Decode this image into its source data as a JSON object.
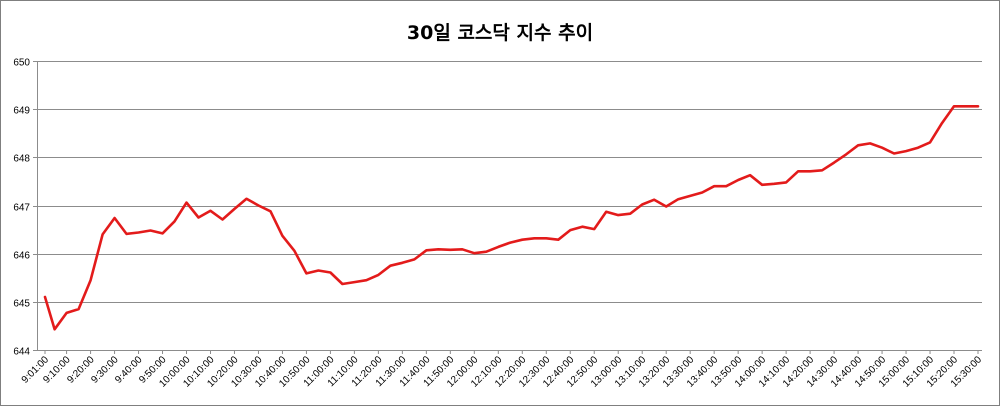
{
  "chart_data": {
    "type": "line",
    "title": "30일 코스닥 지수 추이",
    "xlabel": "",
    "ylabel": "",
    "ylim": [
      644,
      650
    ],
    "yticks": [
      "644",
      "645",
      "646",
      "647",
      "648",
      "649",
      "650"
    ],
    "x_tick_labels": [
      "9:01:00",
      "9:10:00",
      "9:20:00",
      "9:30:00",
      "9:40:00",
      "9:50:00",
      "10:00:00",
      "10:10:00",
      "10:20:00",
      "10:30:00",
      "10:40:00",
      "10:50:00",
      "11:00:00",
      "11:10:00",
      "11:20:00",
      "11:30:00",
      "11:40:00",
      "11:50:00",
      "12:00:00",
      "12:10:00",
      "12:20:00",
      "12:30:00",
      "12:40:00",
      "12:50:00",
      "13:00:00",
      "13:10:00",
      "13:20:00",
      "13:30:00",
      "13:40:00",
      "13:50:00",
      "14:00:00",
      "14:10:00",
      "14:20:00",
      "14:30:00",
      "14:40:00",
      "14:50:00",
      "15:00:00",
      "15:10:00",
      "15:20:00",
      "15:30:00"
    ],
    "grid": true,
    "legend": "none",
    "series": [
      {
        "color": "#e31b1b",
        "x": [
          "9:01:00",
          "9:05:00",
          "9:10:00",
          "9:15:00",
          "9:20:00",
          "9:25:00",
          "9:30:00",
          "9:35:00",
          "9:40:00",
          "9:45:00",
          "9:50:00",
          "9:55:00",
          "10:00:00",
          "10:05:00",
          "10:10:00",
          "10:15:00",
          "10:20:00",
          "10:25:00",
          "10:30:00",
          "10:35:00",
          "10:40:00",
          "10:45:00",
          "10:50:00",
          "10:55:00",
          "11:00:00",
          "11:05:00",
          "11:10:00",
          "11:15:00",
          "11:20:00",
          "11:25:00",
          "11:30:00",
          "11:35:00",
          "11:40:00",
          "11:45:00",
          "11:50:00",
          "11:55:00",
          "12:00:00",
          "12:05:00",
          "12:10:00",
          "12:15:00",
          "12:20:00",
          "12:25:00",
          "12:30:00",
          "12:35:00",
          "12:40:00",
          "12:45:00",
          "12:50:00",
          "12:55:00",
          "13:00:00",
          "13:05:00",
          "13:10:00",
          "13:15:00",
          "13:20:00",
          "13:25:00",
          "13:30:00",
          "13:35:00",
          "13:40:00",
          "13:45:00",
          "13:50:00",
          "13:55:00",
          "14:00:00",
          "14:05:00",
          "14:10:00",
          "14:15:00",
          "14:20:00",
          "14:25:00",
          "14:30:00",
          "14:35:00",
          "14:40:00",
          "14:45:00",
          "14:50:00",
          "14:55:00",
          "15:00:00",
          "15:05:00",
          "15:10:00",
          "15:15:00",
          "15:20:00",
          "15:25:00",
          "15:30:00"
        ],
        "values": [
          645.1,
          644.43,
          644.77,
          644.85,
          645.45,
          646.4,
          646.74,
          646.41,
          646.44,
          646.48,
          646.42,
          646.67,
          647.06,
          646.75,
          646.89,
          646.71,
          646.93,
          647.14,
          647.0,
          646.88,
          646.37,
          646.06,
          645.59,
          645.65,
          645.61,
          645.37,
          645.41,
          645.45,
          645.56,
          645.75,
          645.81,
          645.88,
          646.07,
          646.09,
          646.08,
          646.09,
          646.01,
          646.04,
          646.14,
          646.23,
          646.29,
          646.32,
          646.32,
          646.29,
          646.49,
          646.56,
          646.51,
          646.87,
          646.8,
          646.83,
          647.02,
          647.12,
          646.98,
          647.13,
          647.2,
          647.27,
          647.4,
          647.4,
          647.53,
          647.63,
          647.43,
          647.45,
          647.48,
          647.71,
          647.71,
          647.73,
          647.89,
          648.06,
          648.25,
          648.29,
          648.2,
          648.08,
          648.13,
          648.2,
          648.31,
          648.71,
          649.06,
          649.06,
          649.06
        ]
      }
    ]
  }
}
